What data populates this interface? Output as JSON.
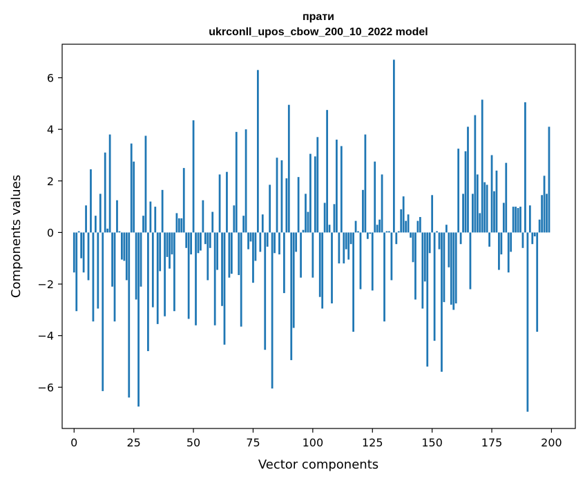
{
  "chart_data": {
    "type": "bar",
    "title": "прати",
    "subtitle": "ukrconll_upos_cbow_200_10_2022 model",
    "xlabel": "Vector components",
    "ylabel": "Components values",
    "xlim": [
      -5,
      210
    ],
    "ylim": [
      -7.6,
      7.3
    ],
    "xticks": [
      0,
      25,
      50,
      75,
      100,
      125,
      150,
      175,
      200
    ],
    "yticks": [
      -6,
      -4,
      -2,
      0,
      2,
      4,
      6
    ],
    "ytick_labels": [
      "−6",
      "−4",
      "−2",
      "0",
      "2",
      "4",
      "6"
    ],
    "grid": false,
    "bar_color": "#1f77b4",
    "x": [
      0,
      1,
      2,
      3,
      4,
      5,
      6,
      7,
      8,
      9,
      10,
      11,
      12,
      13,
      14,
      15,
      16,
      17,
      18,
      19,
      20,
      21,
      22,
      23,
      24,
      25,
      26,
      27,
      28,
      29,
      30,
      31,
      32,
      33,
      34,
      35,
      36,
      37,
      38,
      39,
      40,
      41,
      42,
      43,
      44,
      45,
      46,
      47,
      48,
      49,
      50,
      51,
      52,
      53,
      54,
      55,
      56,
      57,
      58,
      59,
      60,
      61,
      62,
      63,
      64,
      65,
      66,
      67,
      68,
      69,
      70,
      71,
      72,
      73,
      74,
      75,
      76,
      77,
      78,
      79,
      80,
      81,
      82,
      83,
      84,
      85,
      86,
      87,
      88,
      89,
      90,
      91,
      92,
      93,
      94,
      95,
      96,
      97,
      98,
      99,
      100,
      101,
      102,
      103,
      104,
      105,
      106,
      107,
      108,
      109,
      110,
      111,
      112,
      113,
      114,
      115,
      116,
      117,
      118,
      119,
      120,
      121,
      122,
      123,
      124,
      125,
      126,
      127,
      128,
      129,
      130,
      131,
      132,
      133,
      134,
      135,
      136,
      137,
      138,
      139,
      140,
      141,
      142,
      143,
      144,
      145,
      146,
      147,
      148,
      149,
      150,
      151,
      152,
      153,
      154,
      155,
      156,
      157,
      158,
      159,
      160,
      161,
      162,
      163,
      164,
      165,
      166,
      167,
      168,
      169,
      170,
      171,
      172,
      173,
      174,
      175,
      176,
      177,
      178,
      179,
      180,
      181,
      182,
      183,
      184,
      185,
      186,
      187,
      188,
      189,
      190,
      191,
      192,
      193,
      194,
      195,
      196,
      197,
      198,
      199
    ],
    "values": [
      -1.55,
      -3.05,
      0.05,
      -1.0,
      -1.55,
      1.05,
      -1.85,
      2.45,
      -3.45,
      0.65,
      -2.95,
      1.5,
      -6.15,
      3.1,
      0.15,
      3.8,
      -2.1,
      -3.45,
      1.25,
      0.05,
      -1.05,
      -1.1,
      -1.85,
      -6.4,
      3.45,
      2.75,
      -2.6,
      -6.75,
      -2.1,
      0.65,
      3.75,
      -4.6,
      1.2,
      -2.9,
      1.0,
      -3.55,
      -1.5,
      1.65,
      -3.25,
      -0.95,
      -1.4,
      -0.85,
      -3.05,
      0.75,
      0.55,
      0.55,
      2.5,
      -0.6,
      -3.35,
      -0.85,
      4.35,
      -3.6,
      -0.8,
      -0.7,
      1.25,
      -0.45,
      -1.85,
      -0.6,
      0.8,
      -3.6,
      -1.45,
      2.25,
      -2.85,
      -4.35,
      2.35,
      -1.75,
      -1.6,
      1.05,
      3.9,
      -1.65,
      -3.65,
      0.65,
      4.0,
      -0.65,
      -0.35,
      -1.95,
      -1.1,
      6.3,
      -0.75,
      0.7,
      -4.55,
      -0.55,
      1.85,
      -6.05,
      -0.8,
      2.9,
      -0.85,
      2.8,
      -2.35,
      2.1,
      4.95,
      -4.95,
      -3.7,
      -0.75,
      2.15,
      -1.75,
      0.1,
      1.5,
      0.8,
      3.05,
      -1.75,
      2.95,
      3.7,
      -2.5,
      -2.95,
      1.15,
      4.75,
      0.3,
      -2.75,
      1.1,
      3.6,
      -1.2,
      3.35,
      -1.2,
      -0.65,
      -1.05,
      -0.45,
      -3.85,
      0.45,
      0.05,
      -2.2,
      1.65,
      3.8,
      -0.25,
      -0.05,
      -2.25,
      2.75,
      0.3,
      0.5,
      2.25,
      -3.45,
      0.05,
      0.05,
      -1.85,
      6.7,
      -0.45,
      0.05,
      0.9,
      1.4,
      0.45,
      0.7,
      -0.2,
      -1.15,
      -2.6,
      0.45,
      0.6,
      -2.95,
      -1.9,
      -5.2,
      -0.8,
      1.45,
      -4.2,
      0.05,
      -0.65,
      -5.4,
      -2.7,
      0.3,
      -1.35,
      -2.8,
      -3.0,
      -2.75,
      3.25,
      -0.45,
      1.5,
      3.15,
      4.1,
      -2.2,
      1.5,
      4.55,
      2.25,
      0.75,
      5.15,
      1.95,
      1.85,
      -0.55,
      3.0,
      1.6,
      2.4,
      -1.45,
      -0.85,
      1.15,
      2.7,
      -1.55,
      -0.75,
      1.0,
      1.0,
      0.95,
      1.0,
      -0.6,
      5.05,
      -6.95,
      1.05,
      -0.45,
      -0.15,
      -3.85,
      0.5,
      1.45,
      2.2,
      1.5,
      4.1
    ]
  }
}
